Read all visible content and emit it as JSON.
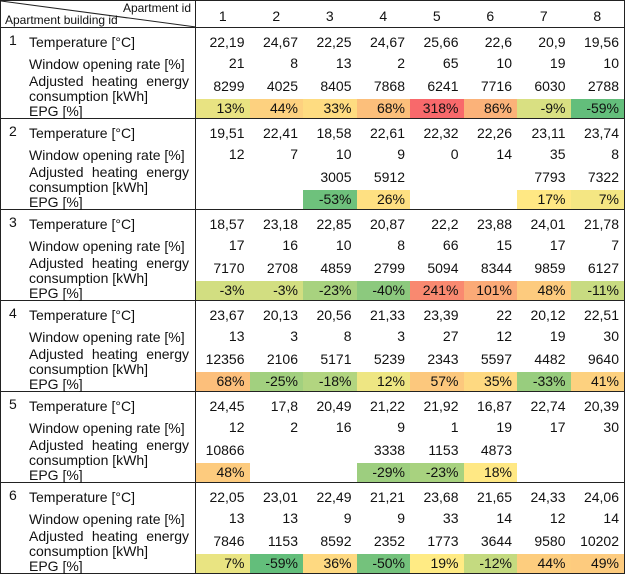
{
  "header": {
    "apartment_id_label": "Apartment id",
    "building_id_label": "Apartment building id",
    "apartment_ids": [
      "1",
      "2",
      "3",
      "4",
      "5",
      "6",
      "7",
      "8"
    ]
  },
  "row_labels": {
    "temperature": "Temperature [°C]",
    "window": "Window opening rate [%]",
    "heating_line1": "Adjusted heating energy",
    "heating_line2": "consumption [kWh]",
    "epg": "EPG [%]"
  },
  "buildings": [
    {
      "id": "1",
      "temperature": [
        "22,19",
        "24,67",
        "22,25",
        "24,67",
        "25,66",
        "22,6",
        "20,9",
        "19,56"
      ],
      "window": [
        "21",
        "8",
        "13",
        "2",
        "65",
        "10",
        "19",
        "10"
      ],
      "heating": [
        "8299",
        "4025",
        "8405",
        "7868",
        "6241",
        "7716",
        "6030",
        "2788"
      ],
      "epg": [
        "13%",
        "44%",
        "33%",
        "68%",
        "318%",
        "86%",
        "-9%",
        "-59%"
      ],
      "epg_colors": [
        "#E8E382",
        "#FDD17F",
        "#FEDC81",
        "#FCBF7B",
        "#F8696B",
        "#FBB279",
        "#D9E082",
        "#63BE7B"
      ]
    },
    {
      "id": "2",
      "temperature": [
        "19,51",
        "22,41",
        "18,58",
        "22,61",
        "22,32",
        "22,26",
        "23,11",
        "23,74"
      ],
      "window": [
        "12",
        "7",
        "10",
        "9",
        "0",
        "14",
        "35",
        "8"
      ],
      "heating": [
        "",
        "",
        "3005",
        "5912",
        "",
        "",
        "7793",
        "7322"
      ],
      "epg": [
        "",
        "",
        "-53%",
        "26%",
        "",
        "",
        "17%",
        "7%"
      ],
      "epg_colors": [
        null,
        null,
        "#6EC17C",
        "#FEE082",
        null,
        null,
        "#FFE884",
        "#F4E683"
      ]
    },
    {
      "id": "3",
      "temperature": [
        "18,57",
        "23,18",
        "22,85",
        "20,87",
        "22,2",
        "23,88",
        "24,01",
        "21,78"
      ],
      "window": [
        "17",
        "16",
        "10",
        "8",
        "66",
        "15",
        "17",
        "7"
      ],
      "heating": [
        "7170",
        "2708",
        "4859",
        "2799",
        "5094",
        "8344",
        "9859",
        "6127"
      ],
      "epg": [
        "-3%",
        "-3%",
        "-23%",
        "-40%",
        "241%",
        "101%",
        "48%",
        "-11%"
      ],
      "epg_colors": [
        "#D2DE81",
        "#D2DE81",
        "#A8D27F",
        "#8CC97E",
        "#F98970",
        "#FBAA77",
        "#FDCB7E",
        "#C8DB81"
      ]
    },
    {
      "id": "4",
      "temperature": [
        "23,67",
        "20,13",
        "20,56",
        "21,33",
        "23,39",
        "22",
        "20,12",
        "22,51"
      ],
      "window": [
        "13",
        "3",
        "8",
        "3",
        "27",
        "12",
        "19",
        "30"
      ],
      "heating": [
        "12356",
        "2106",
        "5171",
        "5239",
        "2343",
        "5597",
        "4482",
        "9640"
      ],
      "epg": [
        "68%",
        "-25%",
        "-18%",
        "12%",
        "57%",
        "35%",
        "-33%",
        "41%"
      ],
      "epg_colors": [
        "#FCBF7B",
        "#A2D07F",
        "#B2D580",
        "#EEE683",
        "#FCC87D",
        "#FED981",
        "#98CD7E",
        "#FDD17F"
      ]
    },
    {
      "id": "5",
      "temperature": [
        "24,45",
        "17,8",
        "20,49",
        "21,22",
        "21,92",
        "16,87",
        "22,74",
        "20,39"
      ],
      "window": [
        "12",
        "2",
        "16",
        "9",
        "1",
        "19",
        "17",
        "30"
      ],
      "heating": [
        "10866",
        "",
        "",
        "3338",
        "1153",
        "4873",
        "",
        ""
      ],
      "epg": [
        "48%",
        "",
        "",
        "-29%",
        "-23%",
        "18%",
        "",
        ""
      ],
      "epg_colors": [
        "#FDCB7E",
        null,
        null,
        "#9DCE7F",
        "#A8D27F",
        "#FFE884",
        null,
        null
      ]
    },
    {
      "id": "6",
      "temperature": [
        "22,05",
        "23,01",
        "22,49",
        "21,21",
        "23,68",
        "21,65",
        "24,33",
        "24,06"
      ],
      "window": [
        "13",
        "13",
        "9",
        "9",
        "33",
        "14",
        "12",
        "14"
      ],
      "heating": [
        "7846",
        "1153",
        "8592",
        "2352",
        "1773",
        "3644",
        "9580",
        "10202"
      ],
      "epg": [
        "7%",
        "-59%",
        "36%",
        "-50%",
        "19%",
        "-12%",
        "44%",
        "49%"
      ],
      "epg_colors": [
        "#E9E482",
        "#63BE7B",
        "#FED981",
        "#74C27C",
        "#FFEB84",
        "#C4DA80",
        "#FDCD7E",
        "#FDCB7E"
      ]
    }
  ]
}
